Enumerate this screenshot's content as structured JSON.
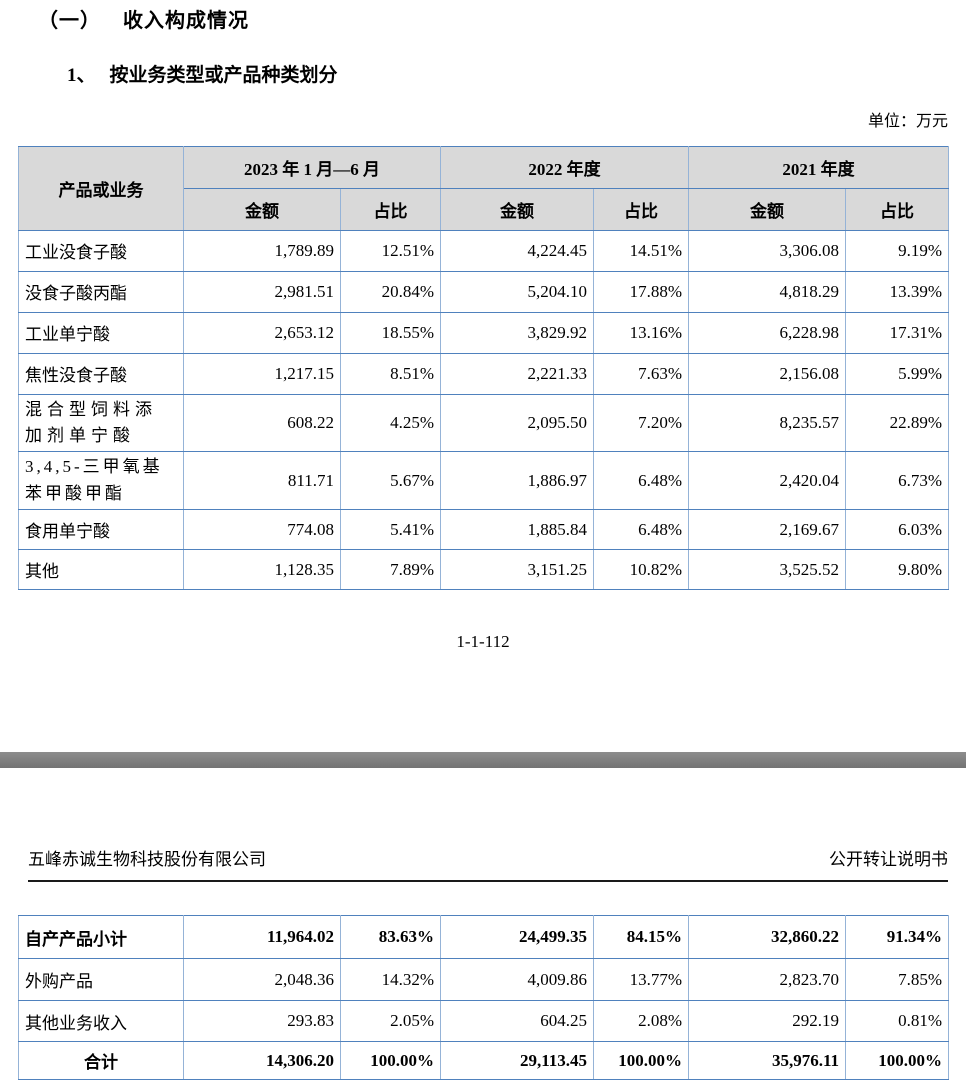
{
  "page1": {
    "heading_number": "（一）",
    "heading_title": "收入构成情况",
    "subheading_number": "1、",
    "subheading_title": "按业务类型或产品种类划分",
    "unit_note": "单位：万元",
    "page_number": "1-1-112"
  },
  "page2": {
    "header_left": "五峰赤诚生物科技股份有限公司",
    "header_right": "公开转让说明书"
  },
  "table1": {
    "header": {
      "product": "产品或业务",
      "periods": [
        "2023 年 1 月—6 月",
        "2022 年度",
        "2021 年度"
      ],
      "amount_label": "金额",
      "ratio_label": "占比"
    },
    "rows": [
      {
        "label": "工业没食子酸",
        "values": [
          "1,789.89",
          "12.51%",
          "4,224.45",
          "14.51%",
          "3,306.08",
          "9.19%"
        ]
      },
      {
        "label": "没食子酸丙酯",
        "values": [
          "2,981.51",
          "20.84%",
          "5,204.10",
          "17.88%",
          "4,818.29",
          "13.39%"
        ]
      },
      {
        "label": "工业单宁酸",
        "values": [
          "2,653.12",
          "18.55%",
          "3,829.92",
          "13.16%",
          "6,228.98",
          "17.31%"
        ]
      },
      {
        "label": "焦性没食子酸",
        "values": [
          "1,217.15",
          "8.51%",
          "2,221.33",
          "7.63%",
          "2,156.08",
          "5.99%"
        ]
      },
      {
        "label": "混合型饲料添\n加剂单宁酸",
        "values": [
          "608.22",
          "4.25%",
          "2,095.50",
          "7.20%",
          "8,235.57",
          "22.89%"
        ]
      },
      {
        "label": "3,4,5-三甲氧基\n苯甲酸甲酯",
        "values": [
          "811.71",
          "5.67%",
          "1,886.97",
          "6.48%",
          "2,420.04",
          "6.73%"
        ]
      },
      {
        "label": "食用单宁酸",
        "values": [
          "774.08",
          "5.41%",
          "1,885.84",
          "6.48%",
          "2,169.67",
          "6.03%"
        ]
      },
      {
        "label": "其他",
        "values": [
          "1,128.35",
          "7.89%",
          "3,151.25",
          "10.82%",
          "3,525.52",
          "9.80%"
        ]
      }
    ]
  },
  "table2": {
    "rows": [
      {
        "label": "自产产品小计",
        "values": [
          "11,964.02",
          "83.63%",
          "24,499.35",
          "84.15%",
          "32,860.22",
          "91.34%"
        ]
      },
      {
        "label": "外购产品",
        "values": [
          "2,048.36",
          "14.32%",
          "4,009.86",
          "13.77%",
          "2,823.70",
          "7.85%"
        ]
      },
      {
        "label": "其他业务收入",
        "values": [
          "293.83",
          "2.05%",
          "604.25",
          "2.08%",
          "292.19",
          "0.81%"
        ]
      },
      {
        "label": "合计",
        "values": [
          "14,306.20",
          "100.00%",
          "29,113.45",
          "100.00%",
          "35,976.11",
          "100.00%"
        ]
      }
    ]
  }
}
